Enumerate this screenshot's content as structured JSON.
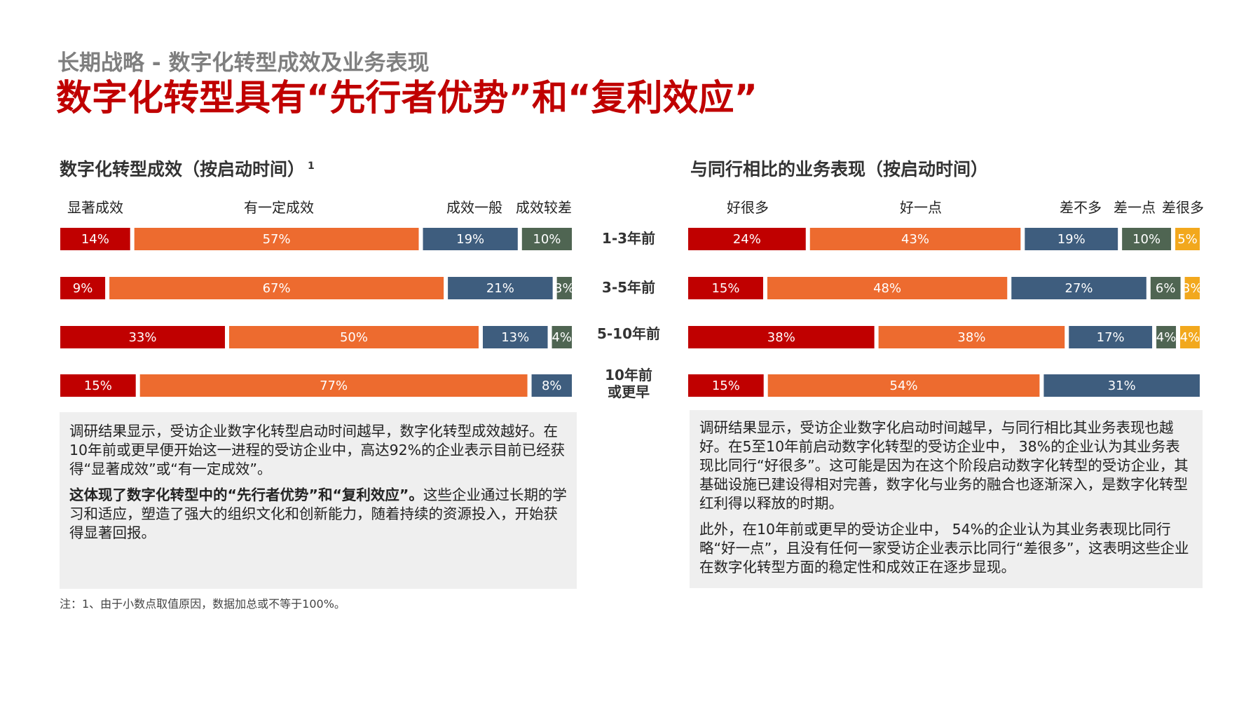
{
  "header": {
    "subtitle": "长期战略 - 数字化转型成效及业务表现",
    "title": "数字化转型具有“先行者优势”和“复利效应”"
  },
  "colors": {
    "red": "#c00000",
    "orange": "#ed6b2f",
    "blue": "#3e5d7e",
    "green": "#4f6552",
    "yellow": "#f2a81d"
  },
  "row_labels": [
    "1-3年前",
    "3-5年前",
    "5-10年前",
    "10年前\n或更早"
  ],
  "chart_data": [
    {
      "type": "bar",
      "stacked": true,
      "orientation": "horizontal",
      "title": "数字化转型成效（按启动时间）",
      "title_superscript": "1",
      "categories": [
        "1-3年前",
        "3-5年前",
        "5-10年前",
        "10年前或更早"
      ],
      "series": [
        {
          "name": "显著成效",
          "color": "#c00000",
          "values": [
            14,
            9,
            33,
            15
          ]
        },
        {
          "name": "有一定成效",
          "color": "#ed6b2f",
          "values": [
            57,
            67,
            50,
            77
          ]
        },
        {
          "name": "成效一般",
          "color": "#3e5d7e",
          "values": [
            19,
            21,
            13,
            8
          ]
        },
        {
          "name": "成效较差",
          "color": "#4f6552",
          "values": [
            10,
            3,
            4,
            0
          ]
        }
      ],
      "legend": "top",
      "value_labels": "percent"
    },
    {
      "type": "bar",
      "stacked": true,
      "orientation": "horizontal",
      "title": "与同行相比的业务表现（按启动时间）",
      "categories": [
        "1-3年前",
        "3-5年前",
        "5-10年前",
        "10年前或更早"
      ],
      "series": [
        {
          "name": "好很多",
          "color": "#c00000",
          "values": [
            24,
            15,
            38,
            15
          ]
        },
        {
          "name": "好一点",
          "color": "#ed6b2f",
          "values": [
            43,
            48,
            38,
            54
          ]
        },
        {
          "name": "差不多",
          "color": "#3e5d7e",
          "values": [
            19,
            27,
            17,
            31
          ]
        },
        {
          "name": "差一点",
          "color": "#4f6552",
          "values": [
            10,
            6,
            4,
            0
          ]
        },
        {
          "name": "差很多",
          "color": "#f2a81d",
          "values": [
            5,
            3,
            4,
            0
          ]
        }
      ],
      "legend": "top",
      "value_labels": "percent"
    }
  ],
  "left_note": {
    "p1": "调研结果显示，受访企业数字化转型启动时间越早，数字化转型成效越好。在10年前或更早便开始这一进程的受访企业中，高达92%的企业表示目前已经获得“显著成效”或“有一定成效”。",
    "p2_bold": "这体现了数字化转型中的“先行者优势”和“复利效应”。",
    "p2_rest": "这些企业通过长期的学习和适应，塑造了强大的组织文化和创新能力，随着持续的资源投入，开始获得显著回报。"
  },
  "right_note": {
    "p1": "调研结果显示，受访企业数字化启动时间越早，与同行相比其业务表现也越好。在5至10年前启动数字化转型的受访企业中， 38%的企业认为其业务表现比同行“好很多”。这可能是因为在这个阶段启动数字化转型的受访企业，其基础设施已建设得相对完善，数字化与业务的融合也逐渐深入，是数字化转型红利得以释放的时期。",
    "p2": "此外，在10年前或更早的受访企业中， 54%的企业认为其业务表现比同行略“好一点”，且没有任何一家受访企业表示比同行“差很多”，这表明这些企业在数字化转型方面的稳定性和成效正在逐步显现。"
  },
  "footnote": "注：1、由于小数点取值原因，数据加总或不等于100%。"
}
